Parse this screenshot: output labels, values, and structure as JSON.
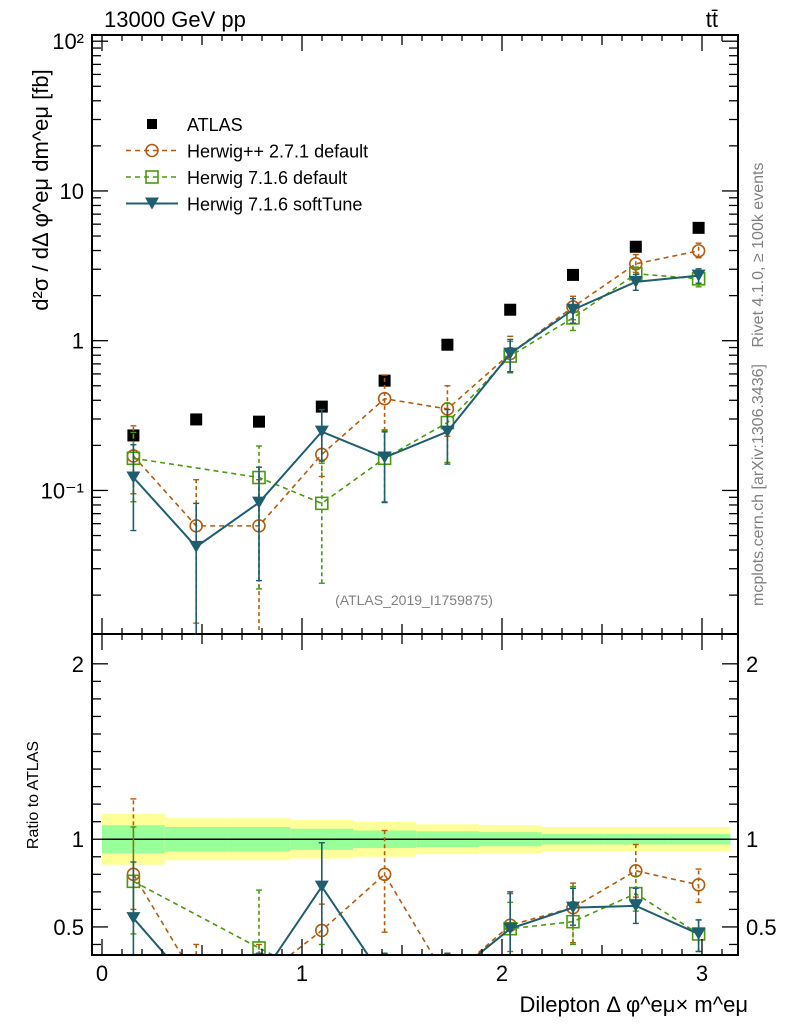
{
  "chart_data": [
    {
      "panel": "main",
      "type": "scatter",
      "title": "13000 GeV pp",
      "process_label": "tt̄",
      "ylabel": "d²σ / dΔ φ^eμ dm^eμ [fb]",
      "yscale": "log",
      "ylim": [
        0.011,
        110
      ],
      "xlim": [
        -0.05,
        3.18
      ],
      "ytick_labels": [
        "10⁻¹",
        "1",
        "10",
        "10²"
      ],
      "ytick_values": [
        0.1,
        1,
        10,
        100
      ],
      "analysis_label": "(ATLAS_2019_I1759875)",
      "legend_position": "top-left",
      "x": [
        0.157,
        0.471,
        0.785,
        1.099,
        1.413,
        1.727,
        2.041,
        2.355,
        2.669,
        2.983
      ],
      "series": [
        {
          "name": "ATLAS",
          "style": "data",
          "color": "#000000",
          "marker": "square-filled",
          "values": [
            0.233,
            0.298,
            0.288,
            0.363,
            0.541,
            0.94,
            1.61,
            2.75,
            4.24,
            5.67
          ]
        },
        {
          "name": "Herwig++ 2.7.1 default",
          "style": "dashed",
          "color": "#b35c0f",
          "marker": "circle-open",
          "values": [
            0.17,
            0.058,
            0.058,
            0.174,
            0.41,
            0.35,
            0.82,
            1.68,
            3.26,
            3.98
          ],
          "err_lo": [
            0.075,
            0.045,
            0.058,
            0.05,
            0.16,
            0.12,
            0.2,
            0.3,
            0.4,
            0.4
          ],
          "err_hi": [
            0.1,
            0.06,
            0.06,
            0.08,
            0.18,
            0.15,
            0.25,
            0.3,
            0.5,
            0.5
          ]
        },
        {
          "name": "Herwig 7.1.6 default",
          "style": "dashed",
          "color": "#4a9a0f",
          "marker": "square-open",
          "values": [
            0.164,
            null,
            0.122,
            0.082,
            0.164,
            0.284,
            0.79,
            1.42,
            2.8,
            2.59
          ],
          "err_lo": [
            0.08,
            null,
            0.1,
            0.058,
            0.08,
            0.13,
            0.18,
            0.25,
            0.3,
            0.3
          ],
          "err_hi": [
            0.08,
            null,
            0.076,
            0.07,
            0.09,
            0.1,
            0.2,
            0.25,
            0.3,
            0.3
          ]
        },
        {
          "name": "Herwig 7.1.6 softTune",
          "style": "solid",
          "color": "#1f5e6e",
          "marker": "triangle-down-filled",
          "values": [
            0.122,
            0.042,
            0.083,
            0.247,
            0.166,
            0.247,
            0.82,
            1.61,
            2.47,
            2.72
          ],
          "err_lo": [
            0.068,
            0.042,
            0.058,
            0.09,
            0.083,
            0.097,
            0.2,
            0.3,
            0.3,
            0.3
          ],
          "err_hi": [
            0.08,
            0.04,
            0.06,
            0.1,
            0.08,
            0.1,
            0.2,
            0.3,
            0.3,
            0.3
          ]
        }
      ]
    },
    {
      "panel": "ratio",
      "type": "line",
      "ylabel": "Ratio to ATLAS",
      "xlabel": "Dilepton Δ φ^eμ× m^eμ",
      "ylim": [
        0.34,
        2.17
      ],
      "xlim": [
        -0.05,
        3.18
      ],
      "ytick_labels": [
        "0.5",
        "1",
        "2"
      ],
      "ytick_values": [
        0.5,
        1,
        2
      ],
      "xtick_labels": [
        "0",
        "1",
        "2",
        "3"
      ],
      "xtick_values": [
        0,
        1,
        2,
        3
      ],
      "bin_edges": [
        0,
        0.314,
        0.628,
        0.942,
        1.257,
        1.571,
        1.885,
        2.199,
        2.513,
        2.827,
        3.142
      ],
      "band_outer": [
        0.145,
        0.12,
        0.12,
        0.11,
        0.1,
        0.085,
        0.08,
        0.07,
        0.07,
        0.07
      ],
      "band_inner": [
        0.08,
        0.07,
        0.07,
        0.06,
        0.05,
        0.045,
        0.04,
        0.03,
        0.03,
        0.03
      ],
      "band_colors": {
        "outer": "#ffff99",
        "inner": "#99ff99"
      },
      "x": [
        0.157,
        0.471,
        0.785,
        1.099,
        1.413,
        1.727,
        2.041,
        2.355,
        2.669,
        2.983
      ],
      "series": [
        {
          "name": "Herwig++ 2.7.1 default",
          "style": "dashed",
          "color": "#b35c0f",
          "marker": "circle-open",
          "values": [
            0.8,
            0.2,
            0.2,
            0.48,
            0.8,
            0.2,
            0.51,
            0.61,
            0.82,
            0.74
          ],
          "err_lo": [
            0.2,
            0.15,
            0.2,
            0.15,
            0.33,
            0.1,
            0.15,
            0.2,
            0.15,
            0.1
          ],
          "err_hi": [
            0.43,
            0.2,
            0.2,
            0.15,
            0.25,
            0.15,
            0.18,
            0.14,
            0.15,
            0.09
          ]
        },
        {
          "name": "Herwig 7.1.6 default",
          "style": "dashed",
          "color": "#4a9a0f",
          "marker": "square-open",
          "values": [
            0.76,
            null,
            0.38,
            0.2,
            0.2,
            0.2,
            0.49,
            0.53,
            0.69,
            0.46
          ],
          "err_lo": [
            0.3,
            null,
            0.05,
            0.15,
            0.1,
            0.1,
            0.15,
            0.13,
            0.1,
            0.1
          ],
          "err_hi": [
            0.31,
            null,
            0.33,
            0.2,
            0.15,
            0.15,
            0.15,
            0.2,
            0.1,
            0.08
          ]
        },
        {
          "name": "Herwig 7.1.6 softTune",
          "style": "solid",
          "color": "#1f5e6e",
          "marker": "triangle-down-filled",
          "values": [
            0.55,
            0.14,
            0.2,
            0.73,
            0.2,
            0.2,
            0.49,
            0.61,
            0.62,
            0.46
          ],
          "err_lo": [
            0.25,
            0.14,
            0.15,
            0.4,
            0.1,
            0.1,
            0.15,
            0.1,
            0.1,
            0.1
          ],
          "err_hi": [
            0.32,
            0.15,
            0.15,
            0.25,
            0.15,
            0.15,
            0.21,
            0.11,
            0.1,
            0.08
          ]
        }
      ]
    }
  ],
  "side_labels": {
    "rivet": "Rivet 4.1.0, ≥ 100k events",
    "mcplots": "mcplots.cern.ch [arXiv:1306.3436]"
  }
}
